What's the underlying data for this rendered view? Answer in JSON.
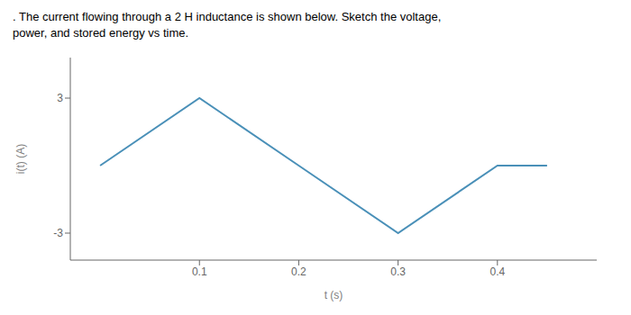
{
  "chart_data": {
    "type": "line",
    "title": ". The current flowing through a 2 H inductance is shown below. Sketch the voltage,",
    "subtitle": "power, and stored energy vs time.",
    "x_label": "t (s)",
    "y_label": "i(t) (A)",
    "x": [
      0.0,
      0.1,
      0.2,
      0.3,
      0.4,
      0.45
    ],
    "values": [
      0.0,
      3.0,
      0.0,
      -3.0,
      0.0,
      0.0
    ],
    "color": "#4a90b8",
    "xlim": [
      -0.03,
      0.5
    ],
    "ylim": [
      -4.2,
      4.8
    ],
    "xticks": [
      0.1,
      0.2,
      0.3,
      0.4
    ],
    "yticks": [
      -3,
      3
    ],
    "grid": false
  }
}
